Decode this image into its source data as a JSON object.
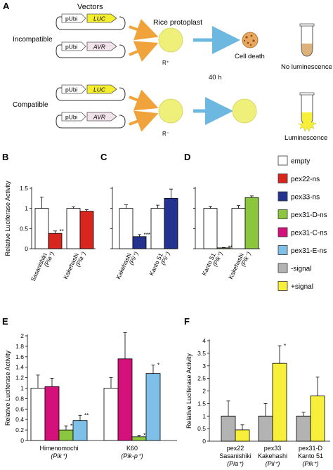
{
  "panel_a": {
    "letter": "A",
    "vectors_label": "Vectors",
    "protoplast_label": "Rice protoplast",
    "incompatible_label": "Incompatible",
    "compatible_label": "Compatible",
    "promoter": "pUbi",
    "gene_luc": "LUC",
    "gene_avr": "AVR",
    "r_plus": "R⁺",
    "r_minus": "R⁻",
    "time_label": "40 h",
    "cell_death_label": "Cell death",
    "no_lum_label": "No luminescence",
    "lum_label": "Luminescence",
    "colors": {
      "luc": "#f4ee2e",
      "avr": "#f2e2ea",
      "arrow_orange": "#f0a33a",
      "arrow_blue": "#6cb8e0",
      "cell": "#eef07a"
    }
  },
  "legend": {
    "items": [
      {
        "label": "empty",
        "color": "#ffffff"
      },
      {
        "label": "pex22-ns",
        "color": "#d7261e"
      },
      {
        "label": "pex33-ns",
        "color": "#24338f"
      },
      {
        "label": "pex31-D-ns",
        "color": "#8cc63f"
      },
      {
        "label": "pex31-C-ns",
        "color": "#d4117b"
      },
      {
        "label": "pex31-E-ns",
        "color": "#7fc0e8"
      },
      {
        "label": "-signal",
        "color": "#b3b3b3"
      },
      {
        "label": "+signal",
        "color": "#f7ef3a"
      }
    ]
  },
  "chart_data": [
    {
      "panel": "B",
      "type": "bar",
      "ylabel": "Relative Luciferase Activity",
      "ylim": [
        0,
        1.5
      ],
      "yticks": [
        "0",
        "0.5",
        "1",
        "1.5"
      ],
      "groups": [
        {
          "label": "Sasanishiki",
          "sublabel": "(Pia⁺)",
          "bars": [
            {
              "series": "empty",
              "value": 1.0,
              "err": 0.28
            },
            {
              "series": "pex22-ns",
              "value": 0.38,
              "err": 0.06,
              "sig": "**"
            }
          ]
        },
        {
          "label": "Kakehashi",
          "sublabel": "(Pia⁻)",
          "bars": [
            {
              "series": "empty",
              "value": 1.0,
              "err": 0.04
            },
            {
              "series": "pex22-ns",
              "value": 0.93,
              "err": 0.04
            }
          ]
        }
      ]
    },
    {
      "panel": "C",
      "type": "bar",
      "ylim": [
        0,
        1.5
      ],
      "groups": [
        {
          "label": "Kakehashi",
          "sublabel": "(Pii⁺)",
          "bars": [
            {
              "series": "empty",
              "value": 1.0,
              "err": 0.09
            },
            {
              "series": "pex33-ns",
              "value": 0.3,
              "err": 0.05,
              "sig": "***"
            }
          ]
        },
        {
          "label": "Kanto 51",
          "sublabel": "(Pii⁻)",
          "bars": [
            {
              "series": "empty",
              "value": 1.0,
              "err": 0.08
            },
            {
              "series": "pex33-ns",
              "value": 1.25,
              "err": 0.23
            }
          ]
        }
      ]
    },
    {
      "panel": "D",
      "type": "bar",
      "ylim": [
        0,
        1.5
      ],
      "groups": [
        {
          "label": "Kanto 51",
          "sublabel": "(Pik⁺)",
          "bars": [
            {
              "series": "empty",
              "value": 1.0,
              "err": 0.05
            },
            {
              "series": "pex31-D-ns",
              "value": 0.02,
              "err": 0.01,
              "sig": "***"
            }
          ]
        },
        {
          "label": "Kakehashi",
          "sublabel": "(Pik⁻)",
          "bars": [
            {
              "series": "empty",
              "value": 1.0,
              "err": 0.07
            },
            {
              "series": "pex31-D-ns",
              "value": 1.27,
              "err": 0.04
            }
          ]
        }
      ]
    },
    {
      "panel": "E",
      "type": "bar",
      "ylabel": "Relative Luciferase Activity",
      "ylim": [
        0,
        2
      ],
      "yticks": [
        "0",
        "0.2",
        "0.4",
        "0.6",
        "0.8",
        "1",
        "1.2",
        "1.4",
        "1.6",
        "1.8",
        "2"
      ],
      "groups": [
        {
          "label": "Himenomochi",
          "sublabel": "(Pik⁺)",
          "bars": [
            {
              "series": "empty",
              "value": 1.0,
              "err": 0.25
            },
            {
              "series": "pex31-C-ns",
              "value": 1.03,
              "err": 0.16
            },
            {
              "series": "pex31-D-ns",
              "value": 0.2,
              "err": 0.08,
              "sig": "***"
            },
            {
              "series": "pex31-E-ns",
              "value": 0.38,
              "err": 0.1,
              "sig": "**"
            }
          ]
        },
        {
          "label": "K60",
          "sublabel": "(Pik-p⁺)",
          "bars": [
            {
              "series": "empty",
              "value": 1.0,
              "err": 0.2
            },
            {
              "series": "pex31-C-ns",
              "value": 1.56,
              "err": 0.5
            },
            {
              "series": "pex31-D-ns",
              "value": 0.07,
              "err": 0.03,
              "sig": "***"
            },
            {
              "series": "pex31-E-ns",
              "value": 1.28,
              "err": 0.16,
              "sig": "*"
            }
          ]
        }
      ]
    },
    {
      "panel": "F",
      "type": "bar",
      "ylabel": "Relative Luciferase Activity",
      "ylim": [
        0,
        4
      ],
      "yticks": [
        "0",
        "0.5",
        "1",
        "1.5",
        "2",
        "2.5",
        "3",
        "3.5",
        "4"
      ],
      "groups": [
        {
          "label": "pex22",
          "sublabel": "Sasanishiki",
          "sublabel2": "(Pia⁺)",
          "bars": [
            {
              "series": "-signal",
              "value": 1.0,
              "err": 0.6
            },
            {
              "series": "+signal",
              "value": 0.45,
              "err": 0.2
            }
          ]
        },
        {
          "label": "pex33",
          "sublabel": "Kakehashi",
          "sublabel2": "(Pii⁺)",
          "bars": [
            {
              "series": "-signal",
              "value": 1.0,
              "err": 0.5
            },
            {
              "series": "+signal",
              "value": 3.1,
              "err": 0.7,
              "sig": "*"
            }
          ]
        },
        {
          "label": "pex31-D",
          "sublabel": "Kanto 51",
          "sublabel2": "(Pik⁺)",
          "bars": [
            {
              "series": "-signal",
              "value": 1.0,
              "err": 0.15
            },
            {
              "series": "+signal",
              "value": 1.8,
              "err": 0.75
            }
          ]
        }
      ]
    }
  ]
}
